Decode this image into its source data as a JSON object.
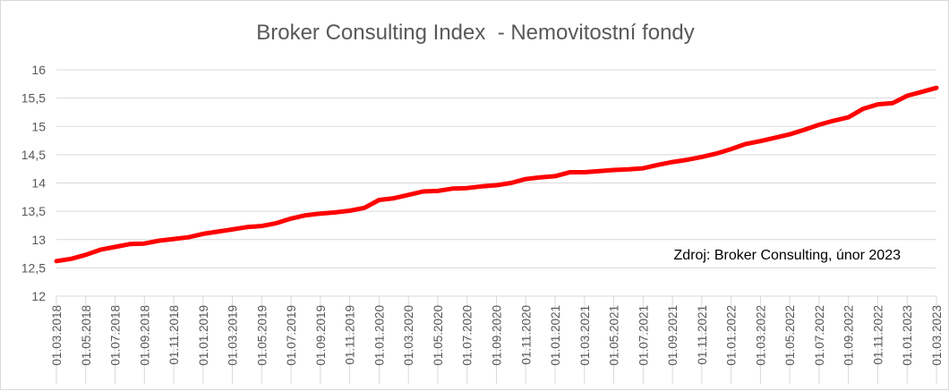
{
  "chart_data": {
    "type": "line",
    "title": "Broker Consulting Index  - Nemovitostní fondy",
    "xlabel": "",
    "ylabel": "",
    "ylim": [
      12,
      16
    ],
    "yticks": [
      "12",
      "12,5",
      "13",
      "13,5",
      "14",
      "14,5",
      "15",
      "15,5",
      "16"
    ],
    "xtick_labels": [
      "01.03.2018",
      "01.05.2018",
      "01.07.2018",
      "01.09.2018",
      "01.11.2018",
      "01.01.2019",
      "01.03.2019",
      "01.05.2019",
      "01.07.2019",
      "01.09.2019",
      "01.11.2019",
      "01.01.2020",
      "01.03.2020",
      "01.05.2020",
      "01.07.2020",
      "01.09.2020",
      "01.11.2020",
      "01.01.2021",
      "01.03.2021",
      "01.05.2021",
      "01.07.2021",
      "01.09.2021",
      "01.11.2021",
      "01.01.2022",
      "01.03.2022",
      "01.05.2022",
      "01.07.2022",
      "01.09.2022",
      "01.11.2022",
      "01.01.2023",
      "01.03.2023"
    ],
    "x": [
      "2018-03",
      "2018-04",
      "2018-05",
      "2018-06",
      "2018-07",
      "2018-08",
      "2018-09",
      "2018-10",
      "2018-11",
      "2018-12",
      "2019-01",
      "2019-02",
      "2019-03",
      "2019-04",
      "2019-05",
      "2019-06",
      "2019-07",
      "2019-08",
      "2019-09",
      "2019-10",
      "2019-11",
      "2019-12",
      "2020-01",
      "2020-02",
      "2020-03",
      "2020-04",
      "2020-05",
      "2020-06",
      "2020-07",
      "2020-08",
      "2020-09",
      "2020-10",
      "2020-11",
      "2020-12",
      "2021-01",
      "2021-02",
      "2021-03",
      "2021-04",
      "2021-05",
      "2021-06",
      "2021-07",
      "2021-08",
      "2021-09",
      "2021-10",
      "2021-11",
      "2021-12",
      "2022-01",
      "2022-02",
      "2022-03",
      "2022-04",
      "2022-05",
      "2022-06",
      "2022-07",
      "2022-08",
      "2022-09",
      "2022-10",
      "2022-11",
      "2022-12",
      "2023-01",
      "2023-02",
      "2023-03"
    ],
    "series": [
      {
        "values": [
          12.62,
          12.66,
          12.73,
          12.82,
          12.87,
          12.92,
          12.93,
          12.98,
          13.01,
          13.04,
          13.1,
          13.14,
          13.18,
          13.22,
          13.24,
          13.29,
          13.37,
          13.43,
          13.46,
          13.48,
          13.51,
          13.56,
          13.7,
          13.73,
          13.79,
          13.85,
          13.86,
          13.9,
          13.91,
          13.94,
          13.96,
          14.0,
          14.07,
          14.1,
          14.12,
          14.19,
          14.19,
          14.21,
          14.23,
          14.24,
          14.26,
          14.32,
          14.37,
          14.41,
          14.46,
          14.52,
          14.6,
          14.69,
          14.74,
          14.8,
          14.86,
          14.94,
          15.03,
          15.1,
          15.16,
          15.31,
          15.39,
          15.41,
          15.54,
          15.61,
          15.68
        ],
        "color": "#ff0000"
      }
    ],
    "grid": true,
    "legend": "none",
    "annotation": "Zdroj: Broker Consulting, únor 2023"
  }
}
